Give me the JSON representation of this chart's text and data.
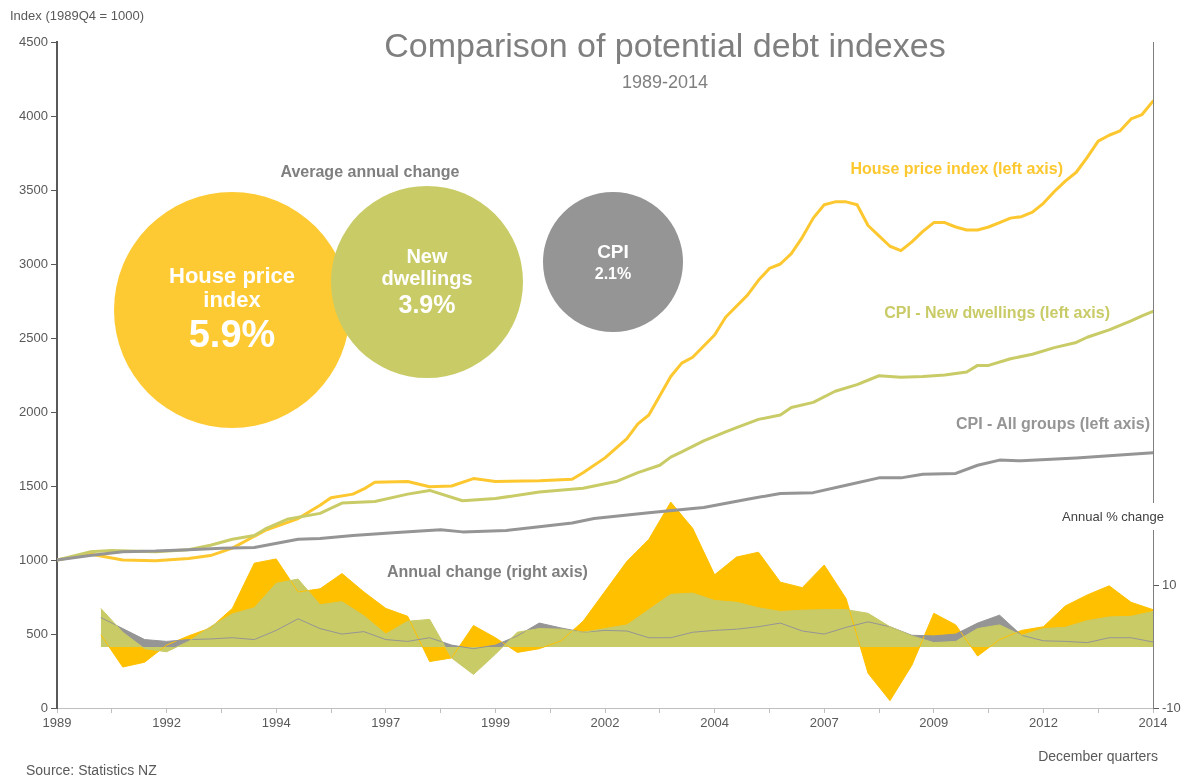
{
  "chart_data": [
    {
      "type": "line",
      "title": "Comparison of potential debt indexes",
      "subtitle": "1989-2014",
      "ylabel": "Index (1989Q4 = 1000)",
      "y2label": "Annual % change",
      "annotations": [
        "Annual change (right axis)",
        "December quarters",
        "Source: Statistics NZ"
      ],
      "xlim": [
        1989,
        2014
      ],
      "xticks": [
        1989,
        {
          "value": 1990.25,
          "label": null
        },
        {
          "value": 1991.5,
          "label": "1992"
        },
        {
          "value": 1992.75,
          "label": null
        },
        1994,
        {
          "value": 1995.25,
          "label": null
        },
        {
          "value": 1996.5,
          "label": "1997"
        },
        {
          "value": 1997.75,
          "label": null
        },
        1999,
        {
          "value": 2000.25,
          "label": null
        },
        {
          "value": 2001.5,
          "label": "2002"
        },
        {
          "value": 2002.75,
          "label": null
        },
        2004,
        {
          "value": 2005.25,
          "label": null
        },
        {
          "value": 2006.5,
          "label": "2007"
        },
        {
          "value": 2007.75,
          "label": null
        },
        2009,
        {
          "value": 2010.25,
          "label": null
        },
        {
          "value": 2011.5,
          "label": "2012"
        },
        {
          "value": 2012.75,
          "label": null
        },
        2014
      ],
      "ylim": [
        0,
        4500
      ],
      "yticks": [
        0,
        500,
        1000,
        1500,
        2000,
        2500,
        3000,
        3500,
        4000,
        4500
      ],
      "y2lim": [
        -10,
        99
      ],
      "y2ticks": [
        -10,
        10
      ],
      "marker": "none",
      "line_style": "solid",
      "series": [
        {
          "type": "area",
          "axis": "y2",
          "color": "#ffc000",
          "x": [
            1990,
            1990.5,
            1991,
            1991.5,
            1992,
            1992.5,
            1993,
            1993.5,
            1994,
            1994.5,
            1995,
            1995.5,
            1996,
            1996.5,
            1997,
            1997.5,
            1998,
            1998.5,
            1999,
            1999.5,
            2000,
            2000.5,
            2001,
            2001.5,
            2002,
            2002.5,
            2003,
            2003.5,
            2004,
            2004.5,
            2005,
            2005.5,
            2006,
            2006.5,
            2007,
            2007.5,
            2008,
            2008.5,
            2009,
            2009.5,
            2010,
            2010.5,
            2011,
            2011.5,
            2012,
            2012.5,
            2013,
            2013.5,
            2014
          ],
          "values": [
            2.0,
            -3.3,
            -2.5,
            0.3,
            1.8,
            3.1,
            6.3,
            13.7,
            14.4,
            9.0,
            9.5,
            12.0,
            9.0,
            6.3,
            5.0,
            -2.4,
            -1.8,
            3.5,
            1.5,
            -0.9,
            -0.3,
            1.0,
            4.2,
            9.1,
            14.0,
            17.6,
            23.7,
            19.4,
            11.8,
            14.7,
            15.5,
            10.6,
            9.7,
            13.4,
            7.9,
            -4.3,
            -8.8,
            -3.0,
            5.5,
            3.6,
            -1.5,
            1.2,
            2.7,
            3.3,
            6.7,
            8.5,
            10.0,
            7.3,
            6.1
          ]
        },
        {
          "type": "area",
          "axis": "y2",
          "color": "#959595",
          "x": [
            1990,
            1990.5,
            1991,
            1991.5,
            1992,
            1992.5,
            1993,
            1993.5,
            1994,
            1994.5,
            1995,
            1995.5,
            1996,
            1996.5,
            1997,
            1997.5,
            1998,
            1998.5,
            1999,
            1999.5,
            2000,
            2000.5,
            2001,
            2001.5,
            2002,
            2002.5,
            2003,
            2003.5,
            2004,
            2004.5,
            2005,
            2005.5,
            2006,
            2006.5,
            2007,
            2007.5,
            2008,
            2008.5,
            2009,
            2009.5,
            2010,
            2010.5,
            2011,
            2011.5,
            2012,
            2012.5,
            2013,
            2013.5,
            2014
          ],
          "values": [
            4.8,
            3.0,
            1.2,
            0.9,
            1.2,
            1.3,
            1.5,
            1.2,
            2.7,
            4.6,
            3.0,
            2.1,
            2.5,
            1.2,
            0.9,
            1.5,
            0.3,
            -0.3,
            0.3,
            1.8,
            3.9,
            3.1,
            2.4,
            2.7,
            2.6,
            1.5,
            1.5,
            2.4,
            2.7,
            2.9,
            3.3,
            3.9,
            2.6,
            2.1,
            3.2,
            4.1,
            3.3,
            1.9,
            1.8,
            2.1,
            3.9,
            5.2,
            1.9,
            1.0,
            0.9,
            0.7,
            1.5,
            1.5,
            0.8
          ]
        },
        {
          "type": "area",
          "axis": "y2",
          "color": "#c9cb67",
          "x": [
            1990,
            1990.5,
            1991,
            1991.5,
            1992,
            1992.5,
            1993,
            1993.5,
            1994,
            1994.5,
            1995,
            1995.5,
            1996,
            1996.5,
            1997,
            1997.5,
            1998,
            1998.5,
            1999,
            1999.5,
            2000,
            2000.5,
            2001,
            2001.5,
            2002,
            2002.5,
            2003,
            2003.5,
            2004,
            2004.5,
            2005,
            2005.5,
            2006,
            2006.5,
            2007,
            2007.5,
            2008,
            2008.5,
            2009,
            2009.5,
            2010,
            2010.5,
            2011,
            2011.5,
            2012,
            2012.5,
            2013,
            2013.5,
            2014
          ],
          "values": [
            6.3,
            2.4,
            -0.3,
            -0.8,
            0.9,
            3.3,
            5.4,
            6.4,
            10.4,
            11.1,
            6.9,
            7.4,
            5.1,
            2.1,
            4.2,
            4.5,
            -1.8,
            -4.5,
            -1.2,
            2.4,
            3.0,
            2.9,
            2.4,
            3.0,
            3.6,
            6.1,
            8.6,
            8.8,
            7.6,
            7.3,
            6.4,
            5.8,
            6.0,
            6.1,
            6.1,
            5.5,
            3.3,
            1.8,
            0.7,
            0.9,
            3.0,
            3.6,
            1.9,
            3.0,
            3.2,
            4.3,
            4.9,
            5.0,
            5.8
          ]
        },
        {
          "type": "line",
          "name": "House price index (left axis)",
          "color": "#fdc82f",
          "x": [
            1989,
            1989.75,
            1990.5,
            1991.25,
            1992,
            1992.5,
            1993,
            1993.75,
            1994.5,
            1995,
            1995.25,
            1995.75,
            1996,
            1996.25,
            1997,
            1997.5,
            1998,
            1998.5,
            1999,
            2000,
            2000.75,
            2001,
            2001.5,
            2002,
            2002.25,
            2002.5,
            2003,
            2003.25,
            2003.5,
            2004,
            2004.25,
            2004.75,
            2005,
            2005.25,
            2005.5,
            2005.75,
            2006,
            2006.25,
            2006.5,
            2006.75,
            2007,
            2007.25,
            2007.5,
            2007.75,
            2008,
            2008.25,
            2008.5,
            2008.75,
            2009,
            2009.25,
            2009.5,
            2009.75,
            2010,
            2010.25,
            2010.5,
            2010.75,
            2011,
            2011.25,
            2011.5,
            2011.75,
            2012,
            2012.25,
            2012.5,
            2012.75,
            2013,
            2013.25,
            2013.5,
            2013.75,
            2014
          ],
          "values": [
            1000,
            1040,
            1000,
            995,
            1010,
            1030,
            1080,
            1200,
            1280,
            1370,
            1420,
            1445,
            1480,
            1525,
            1530,
            1495,
            1500,
            1550,
            1530,
            1535,
            1545,
            1590,
            1690,
            1820,
            1920,
            1980,
            2240,
            2330,
            2370,
            2520,
            2640,
            2790,
            2890,
            2970,
            3000,
            3070,
            3180,
            3310,
            3400,
            3420,
            3420,
            3400,
            3260,
            3190,
            3120,
            3090,
            3150,
            3220,
            3280,
            3280,
            3250,
            3230,
            3230,
            3250,
            3280,
            3310,
            3320,
            3350,
            3410,
            3490,
            3560,
            3620,
            3720,
            3830,
            3870,
            3900,
            3980,
            4010,
            4100
          ]
        },
        {
          "type": "line",
          "name": "CPI - New dwellings (left axis)",
          "color": "#c9cb67",
          "x": [
            1989,
            1989.75,
            1990.25,
            1991.25,
            1992,
            1992.5,
            1993,
            1993.5,
            1993.75,
            1994.25,
            1995,
            1995.5,
            1996.25,
            1997,
            1997.5,
            1998.25,
            1999,
            2000,
            2001,
            2001.5,
            2001.75,
            2002.25,
            2002.75,
            2003,
            2003.25,
            2003.75,
            2004.25,
            2004.5,
            2005,
            2005.5,
            2005.75,
            2006.25,
            2006.75,
            2007.25,
            2007.75,
            2008.25,
            2008.75,
            2009.25,
            2009.75,
            2010,
            2010.25,
            2010.75,
            2011.25,
            2011.75,
            2012.25,
            2012.5,
            2013,
            2013.5,
            2013.75,
            2014
          ],
          "values": [
            1000,
            1055,
            1065,
            1055,
            1070,
            1100,
            1140,
            1165,
            1210,
            1275,
            1315,
            1385,
            1395,
            1445,
            1470,
            1400,
            1415,
            1460,
            1485,
            1515,
            1530,
            1590,
            1640,
            1695,
            1730,
            1805,
            1865,
            1895,
            1950,
            1980,
            2030,
            2065,
            2140,
            2185,
            2245,
            2235,
            2240,
            2250,
            2270,
            2315,
            2315,
            2360,
            2390,
            2435,
            2470,
            2505,
            2555,
            2615,
            2650,
            2680
          ]
        },
        {
          "type": "line",
          "name": "CPI - All groups (left axis)",
          "color": "#959595",
          "x": [
            1989,
            1989.75,
            1990.5,
            1991.25,
            1992,
            1992.75,
            1993.5,
            1994.5,
            1995,
            1995.75,
            1996.75,
            1997.75,
            1998.25,
            1999.25,
            2000,
            2000.75,
            2001.25,
            2002.5,
            2003.75,
            2004.75,
            2005.5,
            2006.25,
            2007,
            2007.75,
            2008.25,
            2008.75,
            2009.5,
            2010,
            2010.5,
            2011,
            2012.25,
            2013.25,
            2014
          ],
          "values": [
            1000,
            1030,
            1055,
            1060,
            1070,
            1080,
            1085,
            1140,
            1145,
            1165,
            1185,
            1205,
            1190,
            1200,
            1225,
            1250,
            1280,
            1320,
            1355,
            1410,
            1450,
            1455,
            1505,
            1555,
            1555,
            1580,
            1585,
            1640,
            1675,
            1670,
            1690,
            1710,
            1725
          ]
        }
      ]
    },
    {
      "type": "other",
      "title": "Average annual change",
      "categories": [
        "House price index",
        "New dwellings",
        "CPI"
      ],
      "values": [
        5.9,
        3.9,
        2.1
      ],
      "value_labels": [
        "5.9%",
        "3.9%",
        "2.1%"
      ],
      "colors": [
        "#fdca33",
        "#c9cb67",
        "#959595"
      ]
    }
  ]
}
